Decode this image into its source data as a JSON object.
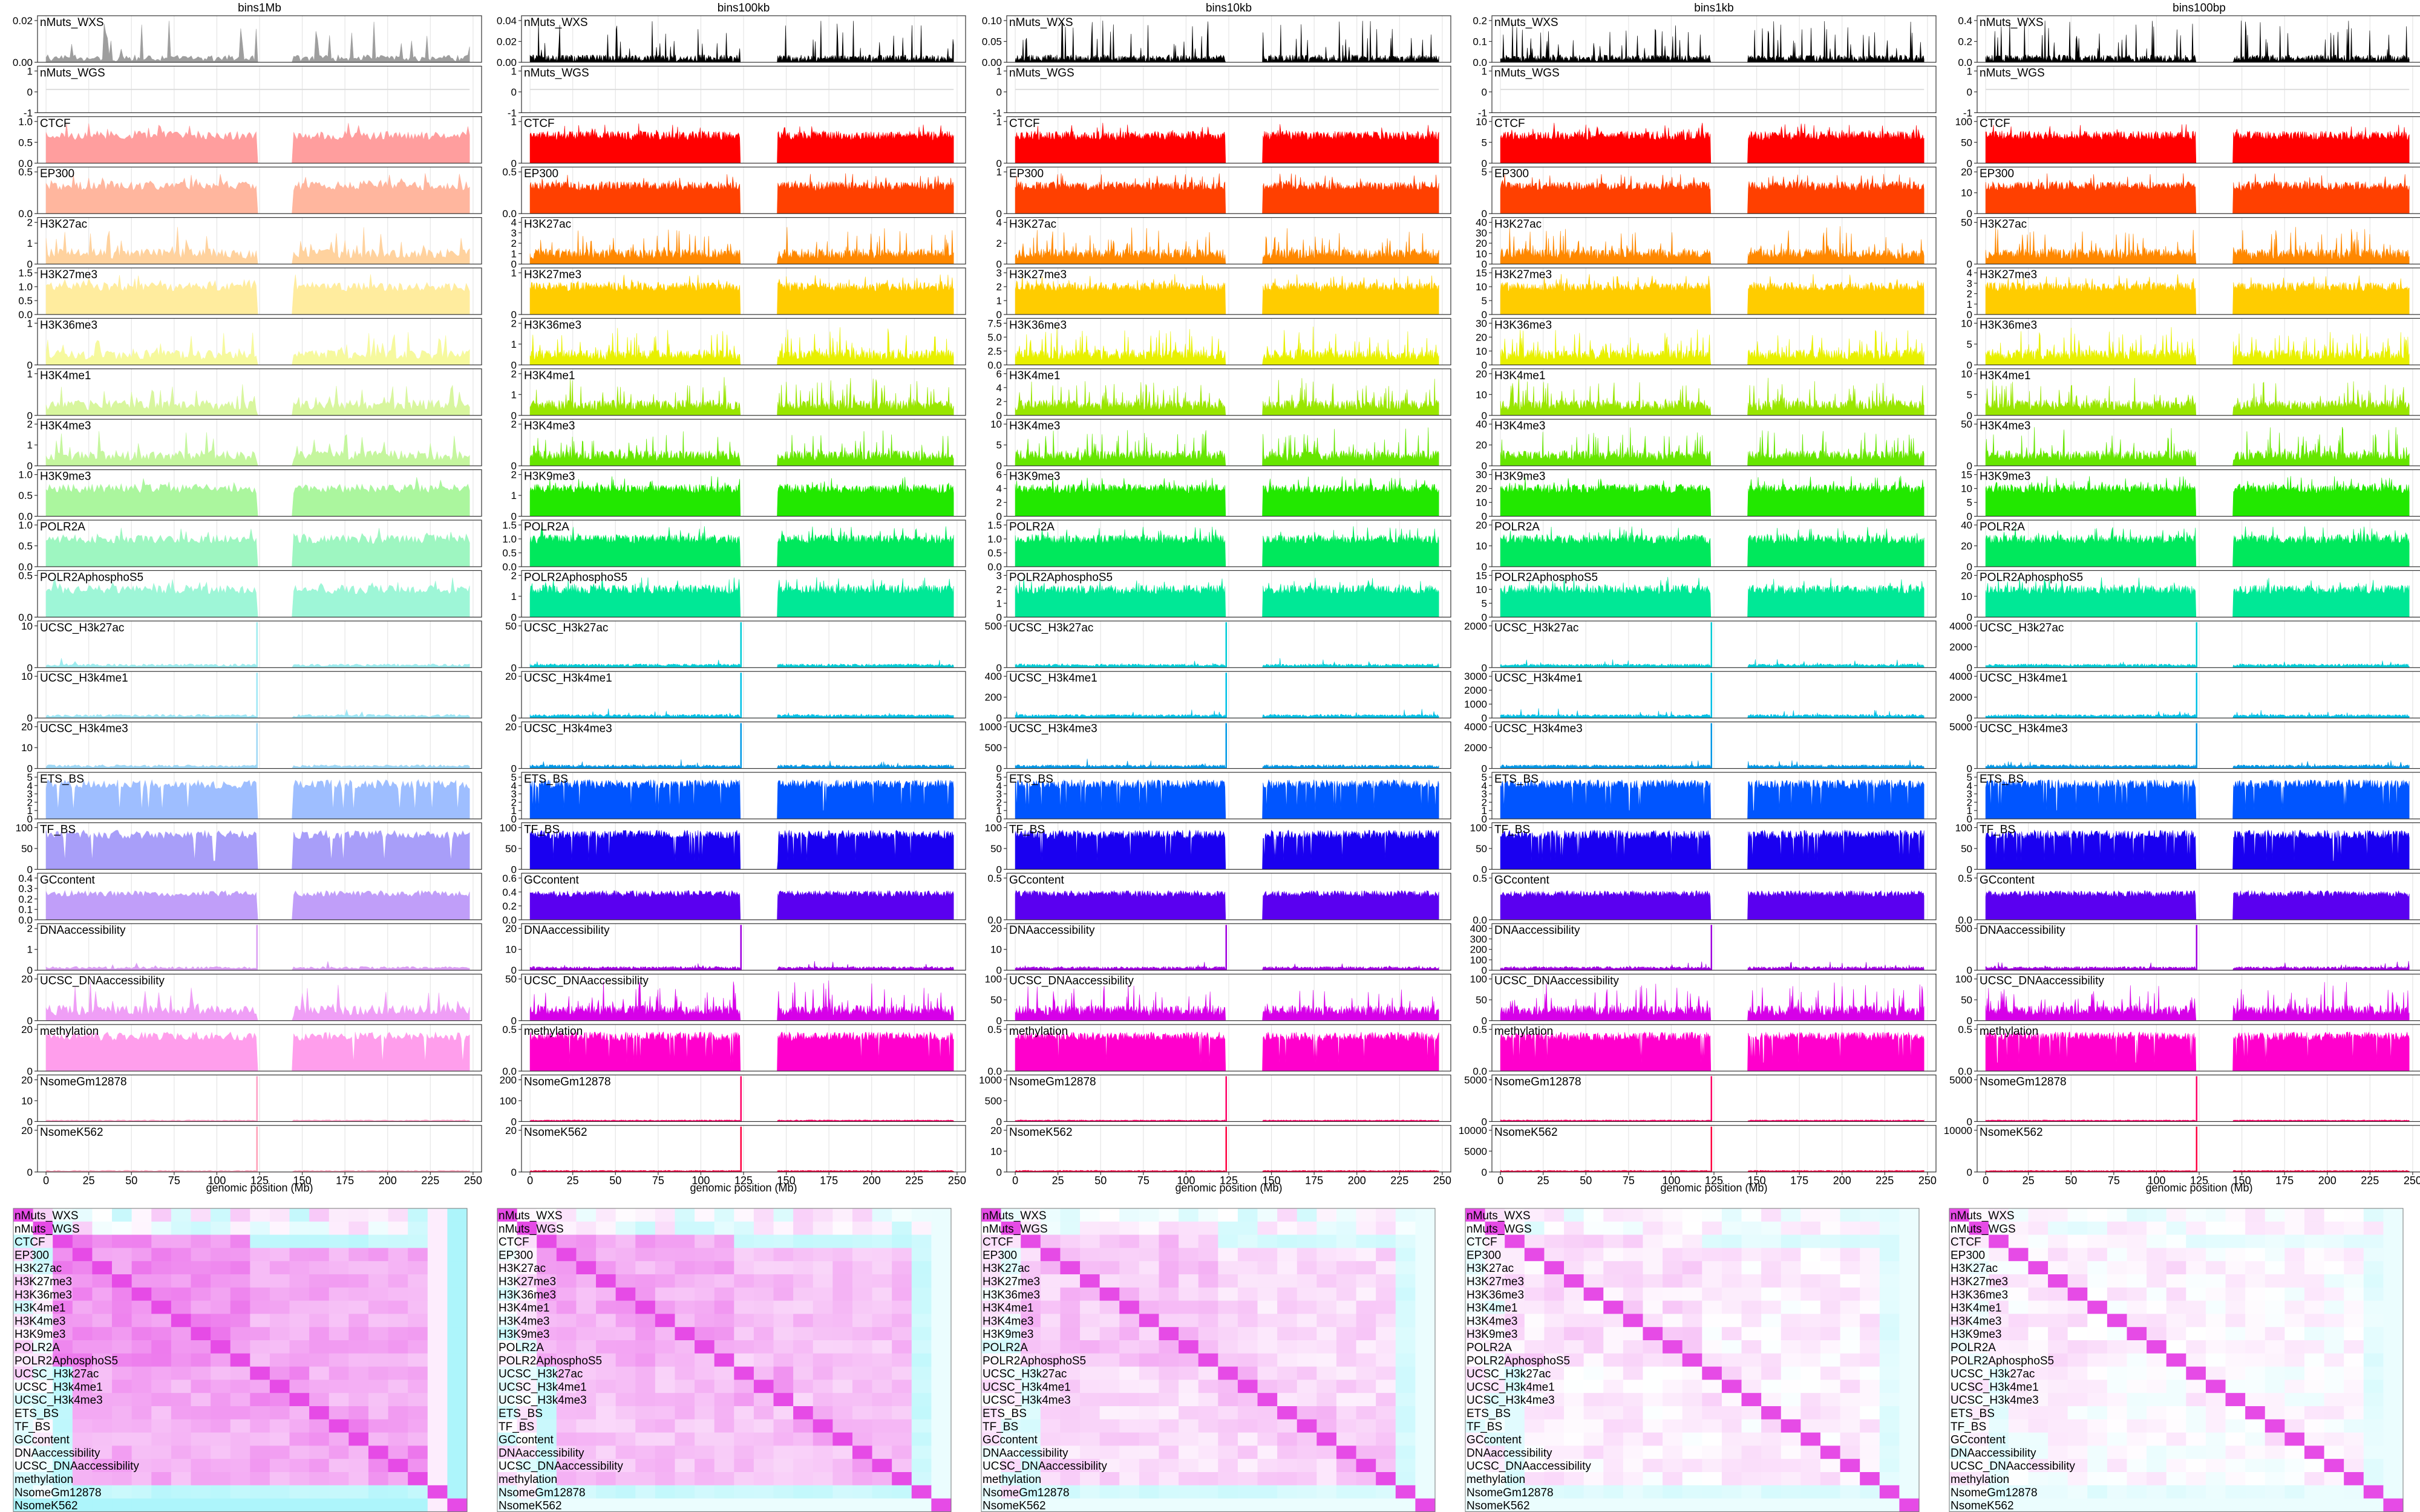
{
  "chart_data": [
    {
      "type": "area",
      "description": "Genomic tracks (one small panel per feature) for five bin sizes; x axis is genomic position on a chromosome.",
      "xlabel": "genomic position (Mb)",
      "xlim": [
        -5,
        255
      ],
      "x_ticks": [
        "0",
        "25",
        "50",
        "75",
        "100",
        "125",
        "150",
        "175",
        "200",
        "225",
        "250"
      ],
      "x_tick_values": [
        0,
        25,
        50,
        75,
        100,
        125,
        150,
        175,
        200,
        225,
        250
      ],
      "centromere_gap_mb": [
        123,
        145
      ],
      "data_end_mb": 248,
      "grid": true,
      "columns": [
        {
          "title": "bins1Mb",
          "fade": 0.38,
          "spike_factor": 4
        },
        {
          "title": "bins100kb",
          "fade": 1.0,
          "spike_factor": 8
        },
        {
          "title": "bins10kb",
          "fade": 1.0,
          "spike_factor": 12
        },
        {
          "title": "bins1kb",
          "fade": 1.0,
          "spike_factor": 14
        },
        {
          "title": "bins100bp",
          "fade": 1.0,
          "spike_factor": 16
        }
      ],
      "tracks": [
        {
          "name": "nMuts_WXS",
          "color": "#000000",
          "kind": "sparse",
          "ticks": [
            [
              "0.02",
              "0.00"
            ],
            [
              "0.04",
              "0.02",
              "0.00"
            ],
            [
              "0.10",
              "0.05",
              "0.00"
            ],
            [
              "0.2",
              "0.1",
              "0.0"
            ],
            [
              "0.4",
              "0.2",
              "0.0"
            ]
          ]
        },
        {
          "name": "nMuts_WGS",
          "color": "#777777",
          "kind": "flat",
          "ticks": [
            [
              "1",
              "0",
              "-1"
            ],
            [
              "1",
              "0",
              "-1"
            ],
            [
              "1",
              "0",
              "-1"
            ],
            [
              "1",
              "0",
              "-1"
            ],
            [
              "1",
              "0",
              "-1"
            ]
          ]
        },
        {
          "name": "CTCF",
          "color": "#FF0000",
          "kind": "block",
          "ticks": [
            [
              "1.0",
              "0.5",
              "0.0"
            ],
            [
              "1",
              "0"
            ],
            [
              "1",
              "0"
            ],
            [
              "10",
              "5",
              "0"
            ],
            [
              "100",
              "50",
              "0"
            ]
          ]
        },
        {
          "name": "EP300",
          "color": "#FF4000",
          "kind": "block",
          "ticks": [
            [
              "0.5",
              "0.0"
            ],
            [
              "0.5",
              "0.0"
            ],
            [
              "1",
              "0"
            ],
            [
              "5",
              "0"
            ],
            [
              "20",
              "10",
              "0"
            ]
          ]
        },
        {
          "name": "H3K27ac",
          "color": "#FF8800",
          "kind": "peaky",
          "ticks": [
            [
              "2",
              "1",
              "0"
            ],
            [
              "4",
              "3",
              "2",
              "1",
              "0"
            ],
            [
              "4",
              "2",
              "0"
            ],
            [
              "40",
              "30",
              "20",
              "10",
              "0"
            ],
            [
              "50",
              "0"
            ]
          ]
        },
        {
          "name": "H3K27me3",
          "color": "#FFCC00",
          "kind": "block",
          "ticks": [
            [
              "1.5",
              "1.0",
              "0.5",
              "0.0"
            ],
            [
              "1",
              "0"
            ],
            [
              "3",
              "2",
              "1",
              "0"
            ],
            [
              "15",
              "10",
              "5",
              "0"
            ],
            [
              "4",
              "3",
              "2",
              "1",
              "0"
            ]
          ]
        },
        {
          "name": "H3K36me3",
          "color": "#E8F000",
          "kind": "peaky",
          "ticks": [
            [
              "1",
              "0"
            ],
            [
              "2",
              "1",
              "0"
            ],
            [
              "7.5",
              "5.0",
              "2.5",
              "0.0"
            ],
            [
              "30",
              "20",
              "10",
              "0"
            ],
            [
              "10",
              "5",
              "0"
            ]
          ]
        },
        {
          "name": "H3K4me1",
          "color": "#99E600",
          "kind": "peaky",
          "ticks": [
            [
              "1",
              "0"
            ],
            [
              "2",
              "1",
              "0"
            ],
            [
              "6",
              "4",
              "2",
              "0"
            ],
            [
              "20",
              "10",
              "0"
            ],
            [
              "10",
              "5",
              "0"
            ]
          ]
        },
        {
          "name": "H3K4me3",
          "color": "#66E600",
          "kind": "peaky",
          "ticks": [
            [
              "2",
              "1",
              "0"
            ],
            [
              "2",
              "0"
            ],
            [
              "10",
              "5",
              "0"
            ],
            [
              "40",
              "20",
              "0"
            ],
            [
              "50",
              "0"
            ]
          ]
        },
        {
          "name": "H3K9me3",
          "color": "#22E800",
          "kind": "block",
          "ticks": [
            [
              "1.0",
              "0.5",
              "0.0"
            ],
            [
              "2",
              "1",
              "0"
            ],
            [
              "6",
              "4",
              "2",
              "0"
            ],
            [
              "30",
              "20",
              "10",
              "0"
            ],
            [
              "15",
              "10",
              "5",
              "0"
            ]
          ]
        },
        {
          "name": "POLR2A",
          "color": "#00E85C",
          "kind": "block",
          "ticks": [
            [
              "1.0",
              "0.5",
              "0.0"
            ],
            [
              "1.5",
              "1.0",
              "0.5",
              "0.0"
            ],
            [
              "1.5",
              "1.0",
              "0.5",
              "0.0"
            ],
            [
              "20",
              "10",
              "0"
            ],
            [
              "40",
              "20",
              "0"
            ]
          ]
        },
        {
          "name": "POLR2AphosphoS5",
          "color": "#00E896",
          "kind": "block",
          "ticks": [
            [
              "0.5",
              "0.0"
            ],
            [
              "2",
              "1",
              "0"
            ],
            [
              "3",
              "2",
              "1",
              "0"
            ],
            [
              "15",
              "10",
              "5",
              "0"
            ],
            [
              "20",
              "10",
              "0"
            ]
          ]
        },
        {
          "name": "UCSC_H3k27ac",
          "color": "#00CCD6",
          "kind": "lowspike",
          "ticks": [
            [
              "10",
              "0"
            ],
            [
              "50",
              "0"
            ],
            [
              "500",
              "0"
            ],
            [
              "2000",
              "0"
            ],
            [
              "4000",
              "2000",
              "0"
            ]
          ]
        },
        {
          "name": "UCSC_H3k4me1",
          "color": "#00C0E6",
          "kind": "lowspike",
          "ticks": [
            [
              "10",
              "0"
            ],
            [
              "20",
              "0"
            ],
            [
              "400",
              "200",
              "0"
            ],
            [
              "3000",
              "2000",
              "1000",
              "0"
            ],
            [
              "4000",
              "2000",
              "0"
            ]
          ]
        },
        {
          "name": "UCSC_H3k4me3",
          "color": "#0098E6",
          "kind": "lowspike",
          "ticks": [
            [
              "20",
              "10",
              "0"
            ],
            [
              "20",
              "0"
            ],
            [
              "1000",
              "500",
              "0"
            ],
            [
              "4000",
              "2000",
              "0"
            ],
            [
              "5000",
              "0"
            ]
          ]
        },
        {
          "name": "ETS_BS",
          "color": "#0055FF",
          "kind": "fill",
          "ticks": [
            [
              "5",
              "4",
              "3",
              "2",
              "1",
              "0"
            ],
            [
              "5",
              "4",
              "3",
              "2",
              "1",
              "0"
            ],
            [
              "5",
              "4",
              "3",
              "2",
              "1",
              "0"
            ],
            [
              "5",
              "4",
              "3",
              "2",
              "1",
              "0"
            ],
            [
              "5",
              "4",
              "3",
              "2",
              "1",
              "0"
            ]
          ]
        },
        {
          "name": "TF_BS",
          "color": "#1A00F0",
          "kind": "fill",
          "ticks": [
            [
              "100",
              "50",
              "0"
            ],
            [
              "100",
              "50",
              "0"
            ],
            [
              "100",
              "50",
              "0"
            ],
            [
              "100",
              "50",
              "0"
            ],
            [
              "100",
              "50",
              "0"
            ]
          ]
        },
        {
          "name": "GCcontent",
          "color": "#5A00F0",
          "kind": "gc",
          "ticks": [
            [
              "0.4",
              "0.3",
              "0.2",
              "0.1",
              "0.0"
            ],
            [
              "0.6",
              "0.4",
              "0.2",
              "0.0"
            ],
            [
              "0.5",
              "0.0"
            ],
            [
              "0.5",
              "0.0"
            ],
            [
              "0.5",
              "0.0"
            ]
          ]
        },
        {
          "name": "DNAaccessibility",
          "color": "#A000E0",
          "kind": "lowspike",
          "ticks": [
            [
              "2",
              "1",
              "0"
            ],
            [
              "20",
              "10",
              "0"
            ],
            [
              "20",
              "10",
              "0"
            ],
            [
              "400",
              "300",
              "200",
              "100",
              "0"
            ],
            [
              "500",
              "0"
            ]
          ]
        },
        {
          "name": "UCSC_DNAaccessibility",
          "color": "#D600E8",
          "kind": "peaky",
          "ticks": [
            [
              "20",
              "0"
            ],
            [
              "50",
              "0"
            ],
            [
              "100",
              "50",
              "0"
            ],
            [
              "100",
              "50",
              "0"
            ],
            [
              "100",
              "50",
              "0"
            ]
          ]
        },
        {
          "name": "methylation",
          "color": "#FF00CC",
          "kind": "fill",
          "ticks": [
            [
              "20",
              "0"
            ],
            [
              "0.5",
              "0.0"
            ],
            [
              "0.5",
              "0.0"
            ],
            [
              "0.5",
              "0.0"
            ],
            [
              "0.5",
              "0.0"
            ]
          ]
        },
        {
          "name": "NsomeGm12878",
          "color": "#FF0066",
          "kind": "nsome",
          "ticks": [
            [
              "20",
              "10",
              "0"
            ],
            [
              "200",
              "100",
              "0"
            ],
            [
              "1000",
              "500",
              "0"
            ],
            [
              "5000",
              "0"
            ],
            [
              "5000",
              "0"
            ]
          ]
        },
        {
          "name": "NsomeK562",
          "color": "#FF0040",
          "kind": "nsome",
          "ticks": [
            [
              "20",
              "0"
            ],
            [
              "20",
              "0"
            ],
            [
              "20",
              "10",
              "0"
            ],
            [
              "10000",
              "5000",
              "0"
            ],
            [
              "10000",
              "0"
            ]
          ]
        }
      ]
    },
    {
      "type": "heatmap",
      "description": "Feature-by-feature correlation matrices, one per bin size (cyan = low, white = mid, magenta = high).",
      "row_labels": [
        "nMuts_WXS",
        "nMuts_WGS",
        "CTCF",
        "EP300",
        "H3K27ac",
        "H3K27me3",
        "H3K36me3",
        "H3K4me1",
        "H3K4me3",
        "H3K9me3",
        "POLR2A",
        "POLR2AphosphoS5",
        "UCSC_H3k27ac",
        "UCSC_H3k4me1",
        "UCSC_H3k4me3",
        "ETS_BS",
        "TF_BS",
        "GCcontent",
        "DNAaccessibility",
        "UCSC_DNAaccessibility",
        "methylation",
        "NsomeGm12878",
        "NsomeK562"
      ],
      "panels": [
        "bins1Mb",
        "bins100kb",
        "bins10kb",
        "bins1kb",
        "bins100bp"
      ],
      "color_low": "#33E6F5",
      "color_mid": "#FFFFFF",
      "color_high": "#E64BE6",
      "decay": [
        0.0,
        0.25,
        0.55,
        0.8,
        0.95
      ]
    }
  ]
}
